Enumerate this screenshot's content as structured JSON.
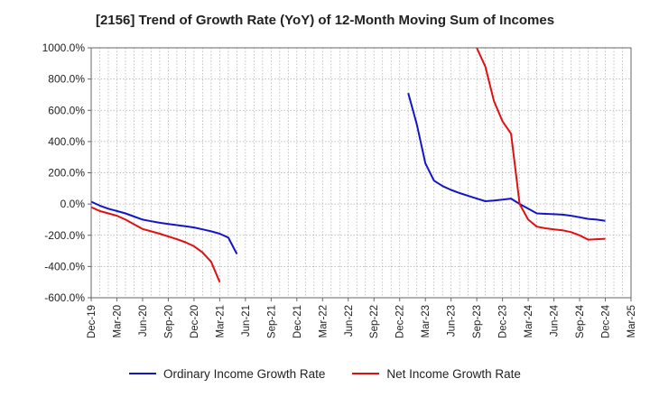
{
  "chart_data": {
    "type": "line",
    "title": "[2156]  Trend of Growth Rate (YoY) of 12-Month Moving Sum of Incomes",
    "xlabel": "",
    "ylabel": "",
    "ylim": [
      -600,
      1000
    ],
    "y_ticks": [
      "1000.0%",
      "800.0%",
      "600.0%",
      "400.0%",
      "200.0%",
      "0.0%",
      "-200.0%",
      "-400.0%",
      "-600.0%"
    ],
    "y_tick_values": [
      1000,
      800,
      600,
      400,
      200,
      0,
      -200,
      -400,
      -600
    ],
    "x_ticks": [
      "Dec-19",
      "Mar-20",
      "Jun-20",
      "Sep-20",
      "Dec-20",
      "Mar-21",
      "Jun-21",
      "Sep-21",
      "Dec-21",
      "Mar-22",
      "Jun-22",
      "Sep-22",
      "Dec-22",
      "Mar-23",
      "Jun-23",
      "Sep-23",
      "Dec-23",
      "Mar-24",
      "Jun-24",
      "Sep-24",
      "Dec-24",
      "Mar-25"
    ],
    "grid": true,
    "legend_position": "bottom",
    "series": [
      {
        "name": "Ordinary Income Growth Rate",
        "color": "#1515c8",
        "points": [
          [
            "Dec-19",
            15
          ],
          [
            "Jan-20",
            -10
          ],
          [
            "Feb-20",
            -30
          ],
          [
            "Mar-20",
            -45
          ],
          [
            "Apr-20",
            -60
          ],
          [
            "May-20",
            -80
          ],
          [
            "Jun-20",
            -100
          ],
          [
            "Jul-20",
            -110
          ],
          [
            "Aug-20",
            -120
          ],
          [
            "Sep-20",
            -128
          ],
          [
            "Oct-20",
            -135
          ],
          [
            "Nov-20",
            -142
          ],
          [
            "Dec-20",
            -150
          ],
          [
            "Jan-21",
            -162
          ],
          [
            "Feb-21",
            -175
          ],
          [
            "Mar-21",
            -190
          ],
          [
            "Apr-21",
            -215
          ],
          [
            "May-21",
            -320
          ],
          null,
          [
            "Jan-23",
            710
          ],
          [
            "Feb-23",
            510
          ],
          [
            "Mar-23",
            260
          ],
          [
            "Apr-23",
            150
          ],
          [
            "May-23",
            115
          ],
          [
            "Jun-23",
            90
          ],
          [
            "Jul-23",
            70
          ],
          [
            "Aug-23",
            52
          ],
          [
            "Sep-23",
            35
          ],
          [
            "Oct-23",
            18
          ],
          [
            "Nov-23",
            22
          ],
          [
            "Dec-23",
            28
          ],
          [
            "Jan-24",
            35
          ],
          [
            "Feb-24",
            0
          ],
          [
            "Mar-24",
            -30
          ],
          [
            "Apr-24",
            -60
          ],
          [
            "May-24",
            -63
          ],
          [
            "Jun-24",
            -65
          ],
          [
            "Jul-24",
            -68
          ],
          [
            "Aug-24",
            -75
          ],
          [
            "Sep-24",
            -85
          ],
          [
            "Oct-24",
            -95
          ],
          [
            "Nov-24",
            -100
          ],
          [
            "Dec-24",
            -108
          ]
        ]
      },
      {
        "name": "Net Income Growth Rate",
        "color": "#e01010",
        "points": [
          [
            "Dec-19",
            -20
          ],
          [
            "Jan-20",
            -45
          ],
          [
            "Feb-20",
            -60
          ],
          [
            "Mar-20",
            -75
          ],
          [
            "Apr-20",
            -100
          ],
          [
            "May-20",
            -130
          ],
          [
            "Jun-20",
            -160
          ],
          [
            "Jul-20",
            -175
          ],
          [
            "Aug-20",
            -190
          ],
          [
            "Sep-20",
            -208
          ],
          [
            "Oct-20",
            -225
          ],
          [
            "Nov-20",
            -245
          ],
          [
            "Dec-20",
            -270
          ],
          [
            "Jan-21",
            -310
          ],
          [
            "Feb-21",
            -370
          ],
          [
            "Mar-21",
            -500
          ],
          null,
          [
            "Sep-23",
            1000
          ],
          [
            "Oct-23",
            880
          ],
          [
            "Nov-23",
            660
          ],
          [
            "Dec-23",
            530
          ],
          [
            "Jan-24",
            450
          ],
          [
            "Feb-24",
            0
          ],
          [
            "Mar-24",
            -100
          ],
          [
            "Apr-24",
            -145
          ],
          [
            "May-24",
            -155
          ],
          [
            "Jun-24",
            -162
          ],
          [
            "Jul-24",
            -168
          ],
          [
            "Aug-24",
            -180
          ],
          [
            "Sep-24",
            -200
          ],
          [
            "Oct-24",
            -228
          ],
          [
            "Nov-24",
            -225
          ],
          [
            "Dec-24",
            -222
          ]
        ]
      }
    ]
  }
}
